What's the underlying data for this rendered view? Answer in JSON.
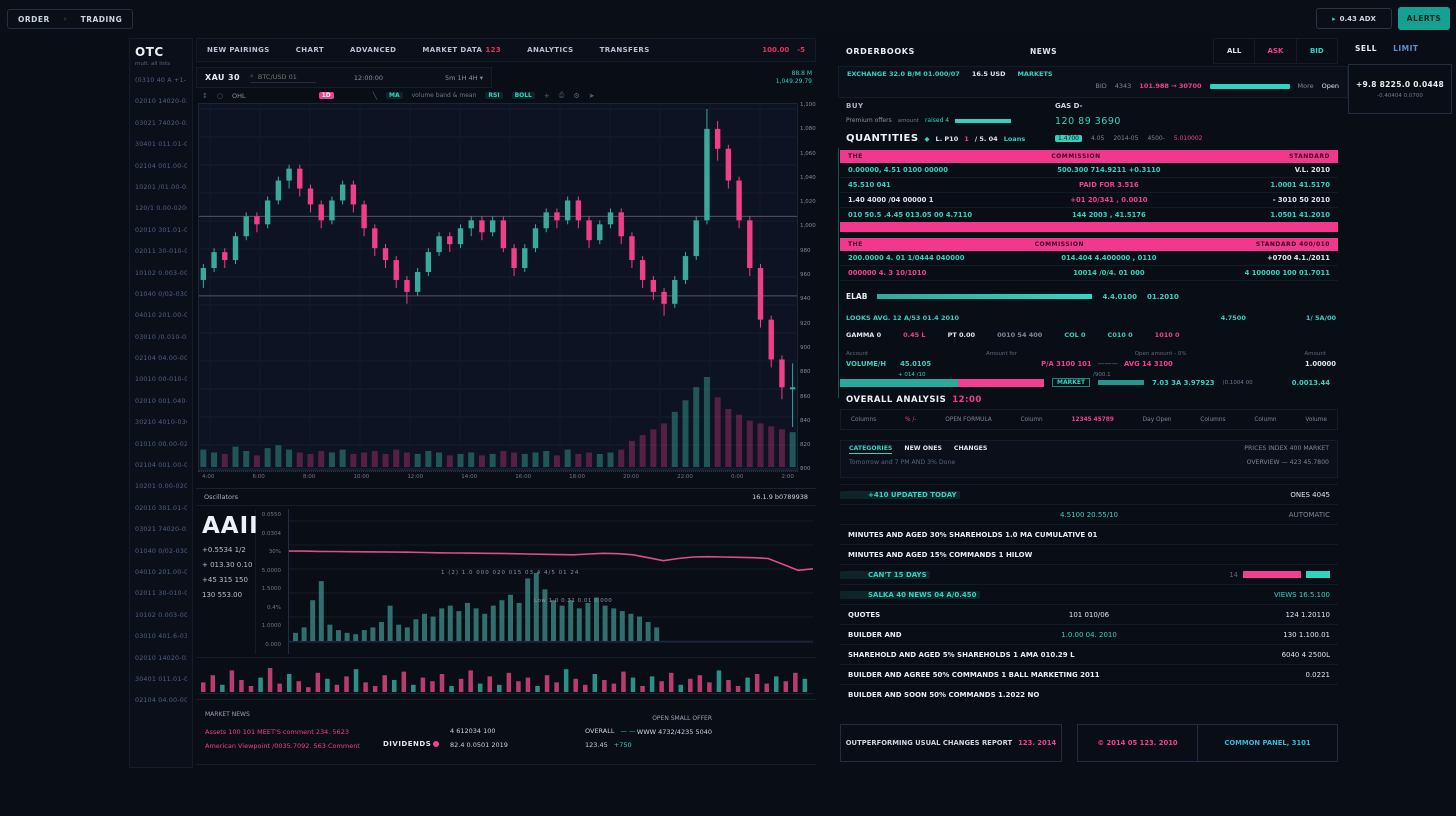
{
  "colors": {
    "teal": "#32d2bf",
    "pink": "#f0408f",
    "red": "#e5325f",
    "up_candle": "#3aa89b",
    "down_candle": "#ee3f88",
    "accent_button": "#14a191"
  },
  "topbar": {
    "button1": "ORDER",
    "button2": "TRADING",
    "wallet_button": "0.43 ADX",
    "alerts_button": "ALERTS"
  },
  "watchlist": {
    "title": "OTC",
    "subtitle": "mult. all lists",
    "items": [
      "(0310 40 A +1-10)",
      "02010 14020-02010",
      "03021 74020-0203",
      "30401 011.01-0040",
      "02104 001.00-0010",
      "10201 /01.00-0203",
      "120/1 0.00-0200",
      "02010 301.01-0500",
      "02011 30-010-040",
      "10102 0.003-0000",
      "01040 0/02-0300",
      "04010 201.00-0110",
      "03010 /0.010-0200",
      "02104 04.00-0010",
      "10010 00-010-020",
      "02010 001.040-000",
      "30210 4010-0300",
      "01010 00.00-0200",
      "02104 001.00-0010",
      "10201 0.00-0200",
      "02010 301.01-0500",
      "03021 74020-0203",
      "01040 0/02-0300",
      "04010 201.00-0110",
      "02011 30-010-040",
      "10102 0.003-0000",
      "03010 401.6-0310",
      "02010 14020-0201",
      "30401 011.01-0040",
      "02104 04.00-0010"
    ]
  },
  "chart_header": {
    "tabs": [
      "NEW PAIRINGS",
      "CHART",
      "ADVANCED",
      "MARKET DATA",
      "ANALYTICS",
      "TRANSFERS"
    ],
    "tab4_badge": "123",
    "alert_value": "100.00",
    "alert_delta": "-5"
  },
  "toolbar2": {
    "symbol": "XAU 30",
    "search": "BTC/USD 01",
    "center_time": "12:00:00",
    "range": "5m  1H  4H ▾",
    "price1": "88.8 M",
    "price2": "1,049.29.79"
  },
  "toolbar3": {
    "ohl": "OHL",
    "interval": "1D",
    "ind1": "MA",
    "ind_text": "volume band & mean",
    "ind2": "RSI",
    "ind3": "BOLL",
    "plus": "+"
  },
  "chart_data": [
    {
      "type": "candlestick",
      "title": "XAU 30",
      "y_labels": [
        "1,100",
        "1,080",
        "1,060",
        "1,040",
        "1,020",
        "1,000",
        "980",
        "960",
        "940",
        "920",
        "900",
        "880",
        "860",
        "840",
        "820",
        "800"
      ],
      "x_labels": [
        "4:00",
        "6:00",
        "8:00",
        "10:00",
        "12:00",
        "14:00",
        "16:00",
        "18:00",
        "20:00",
        "22:00",
        "0:00",
        "2:00"
      ],
      "level_lines": [
        71,
        51
      ],
      "candles": [
        [
          55,
          59,
          53,
          58,
          12
        ],
        [
          58,
          63,
          57,
          62,
          10
        ],
        [
          62,
          63,
          58,
          60,
          9
        ],
        [
          60,
          67,
          59,
          66,
          14
        ],
        [
          66,
          72,
          65,
          71,
          11
        ],
        [
          71,
          72,
          67,
          69,
          8
        ],
        [
          69,
          76,
          68,
          75,
          13
        ],
        [
          75,
          81,
          74,
          80,
          15
        ],
        [
          80,
          84,
          78,
          83,
          12
        ],
        [
          83,
          84,
          76,
          78,
          10
        ],
        [
          78,
          79,
          72,
          74,
          9
        ],
        [
          74,
          75,
          68,
          70,
          11
        ],
        [
          70,
          76,
          69,
          75,
          10
        ],
        [
          75,
          80,
          74,
          79,
          12
        ],
        [
          79,
          80,
          72,
          74,
          9
        ],
        [
          74,
          75,
          66,
          68,
          10
        ],
        [
          68,
          69,
          61,
          63,
          11
        ],
        [
          63,
          64,
          58,
          60,
          9
        ],
        [
          60,
          61,
          53,
          55,
          12
        ],
        [
          55,
          56,
          49,
          52,
          10
        ],
        [
          52,
          58,
          51,
          57,
          9
        ],
        [
          57,
          63,
          56,
          62,
          11
        ],
        [
          62,
          67,
          61,
          66,
          10
        ],
        [
          66,
          67,
          62,
          64,
          8
        ],
        [
          64,
          69,
          63,
          68,
          9
        ],
        [
          68,
          71,
          66,
          70,
          10
        ],
        [
          70,
          71,
          65,
          67,
          8
        ],
        [
          67,
          71,
          66,
          70,
          9
        ],
        [
          70,
          71,
          62,
          63,
          11
        ],
        [
          63,
          64,
          56,
          58,
          10
        ],
        [
          58,
          64,
          57,
          63,
          9
        ],
        [
          63,
          69,
          62,
          68,
          10
        ],
        [
          68,
          73,
          67,
          72,
          11
        ],
        [
          72,
          73,
          68,
          70,
          8
        ],
        [
          70,
          76,
          69,
          75,
          12
        ],
        [
          75,
          76,
          68,
          70,
          9
        ],
        [
          70,
          71,
          63,
          65,
          10
        ],
        [
          65,
          70,
          64,
          69,
          9
        ],
        [
          69,
          73,
          68,
          72,
          10
        ],
        [
          72,
          73,
          64,
          66,
          12
        ],
        [
          66,
          67,
          58,
          60,
          18
        ],
        [
          60,
          61,
          53,
          55,
          22
        ],
        [
          55,
          56,
          50,
          52,
          26
        ],
        [
          52,
          53,
          46,
          49,
          30
        ],
        [
          49,
          56,
          48,
          55,
          38
        ],
        [
          55,
          62,
          54,
          61,
          46
        ],
        [
          61,
          71,
          60,
          70,
          55
        ],
        [
          70,
          98,
          69,
          93,
          62
        ],
        [
          93,
          95,
          85,
          88,
          48
        ],
        [
          88,
          89,
          78,
          80,
          40
        ],
        [
          80,
          81,
          68,
          70,
          36
        ],
        [
          70,
          71,
          56,
          58,
          32
        ],
        [
          58,
          59,
          43,
          45,
          30
        ],
        [
          45,
          46,
          33,
          35,
          28
        ],
        [
          35,
          36,
          25,
          28,
          26
        ],
        [
          28,
          34,
          18,
          28,
          24
        ]
      ]
    },
    {
      "type": "line+bar",
      "name": "AAII oscillator",
      "y_labels": [
        "0.0550",
        "0.0304",
        "30%",
        "5.0000",
        "1.5000",
        "0.4%",
        "1.0000",
        "0.000"
      ],
      "line": [
        63,
        63,
        62.8,
        62.7,
        62.6,
        62.5,
        62.4,
        62.3,
        62.2,
        62,
        61.8,
        61.7,
        61.6,
        61.5,
        61.4,
        61.2,
        61,
        60.8,
        60.6,
        60.5,
        61,
        61.5,
        61.2,
        60.5,
        58.5,
        56.5,
        58,
        59,
        59.2,
        59,
        58.8,
        58.5,
        58,
        54,
        50,
        51
      ],
      "volume": [
        6,
        10,
        30,
        44,
        12,
        8,
        6,
        5,
        8,
        10,
        14,
        26,
        12,
        10,
        16,
        20,
        18,
        24,
        26,
        22,
        28,
        24,
        20,
        26,
        30,
        34,
        28,
        46,
        50,
        38,
        30,
        26,
        30,
        24,
        28,
        32,
        26,
        24,
        22,
        20,
        18,
        14,
        10,
        0,
        0,
        0,
        0,
        0
      ]
    },
    {
      "type": "bar",
      "name": "activity sparkline",
      "heights": [
        8,
        14,
        6,
        18,
        10,
        5,
        12,
        20,
        7,
        15,
        9,
        4,
        16,
        11,
        6,
        13,
        19,
        8,
        5,
        14,
        10,
        17,
        6,
        12,
        9,
        15,
        5,
        11,
        18,
        7,
        13,
        6,
        16,
        9,
        12,
        5,
        14,
        8,
        19,
        11,
        6,
        15,
        10,
        7,
        17,
        12,
        5,
        13,
        9,
        16,
        6,
        11,
        14,
        8,
        18,
        10,
        5,
        12,
        15,
        7,
        13,
        9,
        16,
        11
      ],
      "colors": [
        "p",
        "p",
        "t",
        "p",
        "p",
        "p",
        "t",
        "p",
        "p",
        "t",
        "p",
        "p",
        "p",
        "t",
        "p",
        "p",
        "t",
        "p",
        "p",
        "p",
        "t",
        "p",
        "t",
        "p",
        "p",
        "p",
        "t",
        "p",
        "p",
        "t",
        "p",
        "t",
        "p",
        "p",
        "p",
        "t",
        "p",
        "p",
        "t",
        "p",
        "p",
        "t",
        "p",
        "p",
        "p",
        "t",
        "p",
        "t",
        "p",
        "p",
        "t",
        "p",
        "p",
        "p",
        "t",
        "p",
        "p",
        "t",
        "p",
        "p",
        "t",
        "p",
        "p",
        "t"
      ]
    }
  ],
  "oscillator": {
    "header_left": "Oscillators",
    "header_right": "16.1.9 b0789938",
    "ticker": "AAII",
    "stats": [
      "+0.5534 1/2",
      "+ 013.30 0.10",
      "+45 315 150",
      "130 553.00"
    ],
    "annotation1": "1 (2) 1.0 000 020 015 03 4 4/5 01 24",
    "annotation2": "Low 1.0 0.31 0.01 0.000"
  },
  "bottom_stats": {
    "title": "MARKET NEWS",
    "pink1": "Assets 100 101 MEET'S comment 234. 5623",
    "pink2": "American Viewpoint /0035.7092. 563 Comment",
    "dividends": "DIVIDENDS",
    "val1": "4 612034 100",
    "val2": "82.4 0.0501 2019",
    "overall_label": "OVERALL",
    "overall_dash": "— —",
    "overall_val": "123.45",
    "overall_delta": "+750",
    "right1": "OPEN SMALL OFFER",
    "right2": "WWW 4732/4235 5040"
  },
  "orderbook": {
    "title": "ORDERBOOKS",
    "center_title": "NEWS",
    "tabs": [
      "ALL",
      "ASK",
      "BID"
    ],
    "exchange_row": {
      "items": [
        {
          "t": "EXCHANGE 32.0 B/M 01.000/07",
          "c": "teal"
        },
        {
          "t": "16.5 USD",
          "c": "white"
        },
        {
          "t": "MARKETS",
          "c": "teal"
        }
      ],
      "bid_label": "BID",
      "bid_count": "4343",
      "price": "101.988 → 30700",
      "more": "More",
      "open": "Open"
    },
    "buy_col": {
      "label": "BUY",
      "offer_label": "Premium offers",
      "offer_small": "amount",
      "offer_link": "raised 4",
      "quantities_label": "QUANTITIES",
      "quantities_items": [
        {
          "t": "◆",
          "c": "teal"
        },
        {
          "t": "L. P10",
          "c": "white"
        },
        {
          "t": "1",
          "c": "pink"
        },
        {
          "t": "/ 5. 04",
          "c": "white"
        },
        {
          "t": "Loans",
          "c": "teal"
        }
      ],
      "quantities_value": "R.010,"
    },
    "gas_col": {
      "label": "GAS D-",
      "value": "120 89 3690",
      "row": [
        {
          "t": "1.4700",
          "c": "tealchip"
        },
        {
          "t": "4.05",
          "c": "gray"
        },
        {
          "t": "2014-05",
          "c": "gray"
        },
        {
          "t": "4500-",
          "c": "gray"
        },
        {
          "t": "5.010002",
          "c": "pink"
        }
      ]
    },
    "header1": [
      "THE",
      "COMMISSION",
      "STANDARD"
    ],
    "rows1": [
      [
        {
          "t": "0.00000, 4.51 0100 00000",
          "c": "teal"
        },
        {
          "t": "500.300 714.9211 +0.3110",
          "c": "teal"
        },
        {
          "t": "V.L. 2010",
          "c": "white"
        }
      ],
      [
        {
          "t": "45.510 041",
          "c": "teal"
        },
        {
          "t": "PAID FOR 3.516",
          "c": "pink"
        },
        {
          "t": "1.0001 41.5170",
          "c": "teal"
        }
      ],
      [
        {
          "t": "1.40 4000 /04 00000 1",
          "c": "white"
        },
        {
          "t": "+01 20/341 , 0.0010",
          "c": "pink"
        },
        {
          "t": "- 3010 50 2010",
          "c": "white"
        }
      ],
      [
        {
          "t": "010 50.5 .4.45 013.05 00 4.7110",
          "c": "teal"
        },
        {
          "t": "144 2003 , 41.5176",
          "c": "teal"
        },
        {
          "t": "1.0501 41.2010",
          "c": "teal"
        }
      ]
    ],
    "header2": [
      "THE",
      "COMMISSION",
      "STANDARD 400/010"
    ],
    "rows2": [
      [
        {
          "t": "200.0000 4. 01 1/0444 040000",
          "c": "teal"
        },
        {
          "t": "014.404 4.400000 , 0110",
          "c": "teal"
        },
        {
          "t": "+0700 4.1./2011",
          "c": "white"
        }
      ],
      [
        {
          "t": "000000 4. 3 10/1010",
          "c": "pink"
        },
        {
          "t": "10014 /0/4. 01 000",
          "c": "teal"
        },
        {
          "t": "4 100000 100 01.7011",
          "c": "teal"
        }
      ]
    ]
  },
  "analysis": {
    "elab": {
      "label": "ELAB",
      "val1": "4.4.0100",
      "val2": "01.2010"
    },
    "looks_row": {
      "left": "LOOKS AVG. 12 A/53 01.4 2010",
      "mid": "4.7500",
      "right": "1/ 5A/00"
    },
    "gamma_row": [
      {
        "t": "GAMMA 0",
        "c": "white"
      },
      {
        "t": "0.45 L",
        "c": "pink"
      },
      {
        "t": "PT 0.00",
        "c": "white"
      },
      {
        "t": "0010 54 400",
        "c": "gray"
      },
      {
        "t": "COL 0",
        "c": "teal"
      },
      {
        "t": "C010 0",
        "c": "teal"
      },
      {
        "t": "1010 0",
        "c": "pink"
      }
    ],
    "labels_row": [
      "Account",
      "Amount for",
      "Open amount - 0%",
      "Amount"
    ],
    "volume_row": {
      "l1": "VOLUME/H",
      "l2": "45.0105",
      "c1": "P/A 3100 101",
      "c2": "———",
      "c3": "AVG 14 3100",
      "r": "1.00000",
      "sub_l": "+ 014 /10",
      "sub_c": "/900.1"
    },
    "depth": {
      "chip": "MARKET",
      "val": "7.03 3A 3.97923",
      "note": "(0.1004 00",
      "right": "0.0013.44"
    },
    "heading": "OVERALL ANALYSIS",
    "heading_badge": "12:00",
    "columns": [
      {
        "t": "Columns",
        "c": "gray"
      },
      {
        "t": "% /-",
        "c": "pink"
      },
      {
        "t": "OPEN FORMULA",
        "c": "gray"
      },
      {
        "t": "Column",
        "c": "gray"
      },
      {
        "t": "12345 45789",
        "c": "pinkbold"
      },
      {
        "t": "Day Open",
        "c": "gray"
      },
      {
        "t": "Columns",
        "c": "gray"
      },
      {
        "t": "Column",
        "c": "gray"
      },
      {
        "t": "Volume",
        "c": "gray"
      }
    ]
  },
  "news": {
    "box": {
      "l1a": "CATEGORIES",
      "l1b": "NEW ONES",
      "l1c": "CHANGES",
      "l2": "Tomorrow and 7 PM AND 3% Done",
      "r1": "PRICES INDEX 400 MARKET",
      "r2": "OVERVIEW — 423 45.7800"
    },
    "rows": [
      {
        "l": {
          "t": "+410 UPDATED TODAY",
          "c": "gray",
          "ind": true
        },
        "r": {
          "t": "ONES 4045",
          "c": "white"
        }
      },
      {
        "c": {
          "t": "4.5100 20.55/10",
          "c": "teal"
        },
        "r": {
          "t": "AUTOMATIC",
          "c": "gray"
        }
      },
      {
        "l": {
          "t": "MINUTES AND AGED 30% SHAREHOLDS 1.0 MA CUMULATIVE 01",
          "c": "whitebold"
        }
      },
      {
        "l": {
          "t": "MINUTES AND AGED 15% COMMANDS 1 HILOW",
          "c": "whitebold"
        }
      },
      {
        "l": {
          "t": "CAN'T 15 DAYS",
          "c": "gray",
          "ind": true
        },
        "bar": true,
        "bar_note": "14"
      },
      {
        "l": {
          "t": "SALKA 40 NEWS 04 A/0.450",
          "c": "teal",
          "ind": true
        },
        "r": {
          "t": "VIEWS 16.5.100",
          "c": "teal"
        }
      },
      {
        "l": {
          "t": "QUOTES",
          "c": "whitebold"
        },
        "c": {
          "t": "101 010/06",
          "c": "white"
        },
        "r": {
          "t": "124 1.20110",
          "c": "white"
        }
      },
      {
        "l": {
          "t": "BUILDER AND",
          "c": "whitebold"
        },
        "c": {
          "t": "1.0.00 04. 2010",
          "c": "teal"
        },
        "r": {
          "t": "130 1.100.01",
          "c": "white"
        }
      },
      {
        "l": {
          "t": "SHAREHOLD AND AGED 5% SHAREHOLDS 1 AMA 010.29 L",
          "c": "whitebold"
        },
        "r": {
          "t": "6040 4 2500L",
          "c": "white"
        }
      },
      {
        "l": {
          "t": "BUILDER AND AGREE 50% COMMANDS 1 BALL MARKETING 2011",
          "c": "whitebold"
        },
        "r": {
          "t": "0.0221",
          "c": "white"
        }
      },
      {
        "l": {
          "t": "BUILDER AND SOON 50% COMMANDS 1.2022 NO",
          "c": "whitebold"
        }
      }
    ]
  },
  "footer_buttons": {
    "b1_text": "OUTPERFORMING USUAL CHANGES REPORT",
    "b1_value": "123. 2014",
    "b2_text": "© 2014 05 123. 2010",
    "b3_text": "COMMON PANEL, 3101"
  },
  "sell_panel": {
    "tab1": "SELL",
    "tab2": "LIMIT",
    "value": "+9.8 8225.0 0.0448",
    "sub": "-0.40404  0.0700"
  }
}
